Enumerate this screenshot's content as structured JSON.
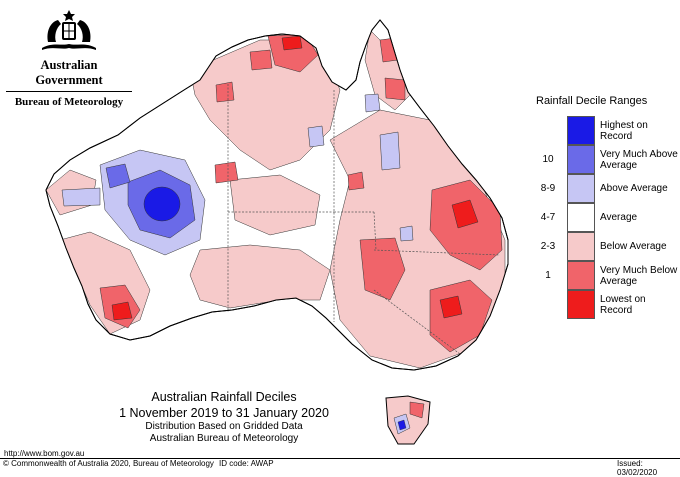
{
  "header": {
    "government": "Australian Government",
    "bureau": "Bureau of Meteorology"
  },
  "legend": {
    "title": "Rainfall Decile Ranges",
    "items": [
      {
        "range": "",
        "label": "Highest on Record",
        "color": "#1a1ae6"
      },
      {
        "range": "10",
        "label": "Very Much Above Average",
        "color": "#6a6ae8"
      },
      {
        "range": "8-9",
        "label": "Above Average",
        "color": "#c6c6f4"
      },
      {
        "range": "4-7",
        "label": "Average",
        "color": "#ffffff"
      },
      {
        "range": "2-3",
        "label": "Below Average",
        "color": "#f6caca"
      },
      {
        "range": "1",
        "label": "Very Much Below Average",
        "color": "#f0646a"
      },
      {
        "range": "",
        "label": "Lowest on Record",
        "color": "#ee1c1c"
      }
    ]
  },
  "map_title": {
    "title": "Australian Rainfall Deciles",
    "period": "1 November 2019 to 31 January 2020",
    "line3": "Distribution Based on Gridded Data",
    "line4": "Australian Bureau of Meteorology"
  },
  "footer": {
    "url": "http://www.bom.gov.au",
    "copyright": "© Commonwealth of Australia 2020, Bureau of Meteorology",
    "id_code": "ID code: AWAP",
    "issued": "Issued: 03/02/2020"
  }
}
